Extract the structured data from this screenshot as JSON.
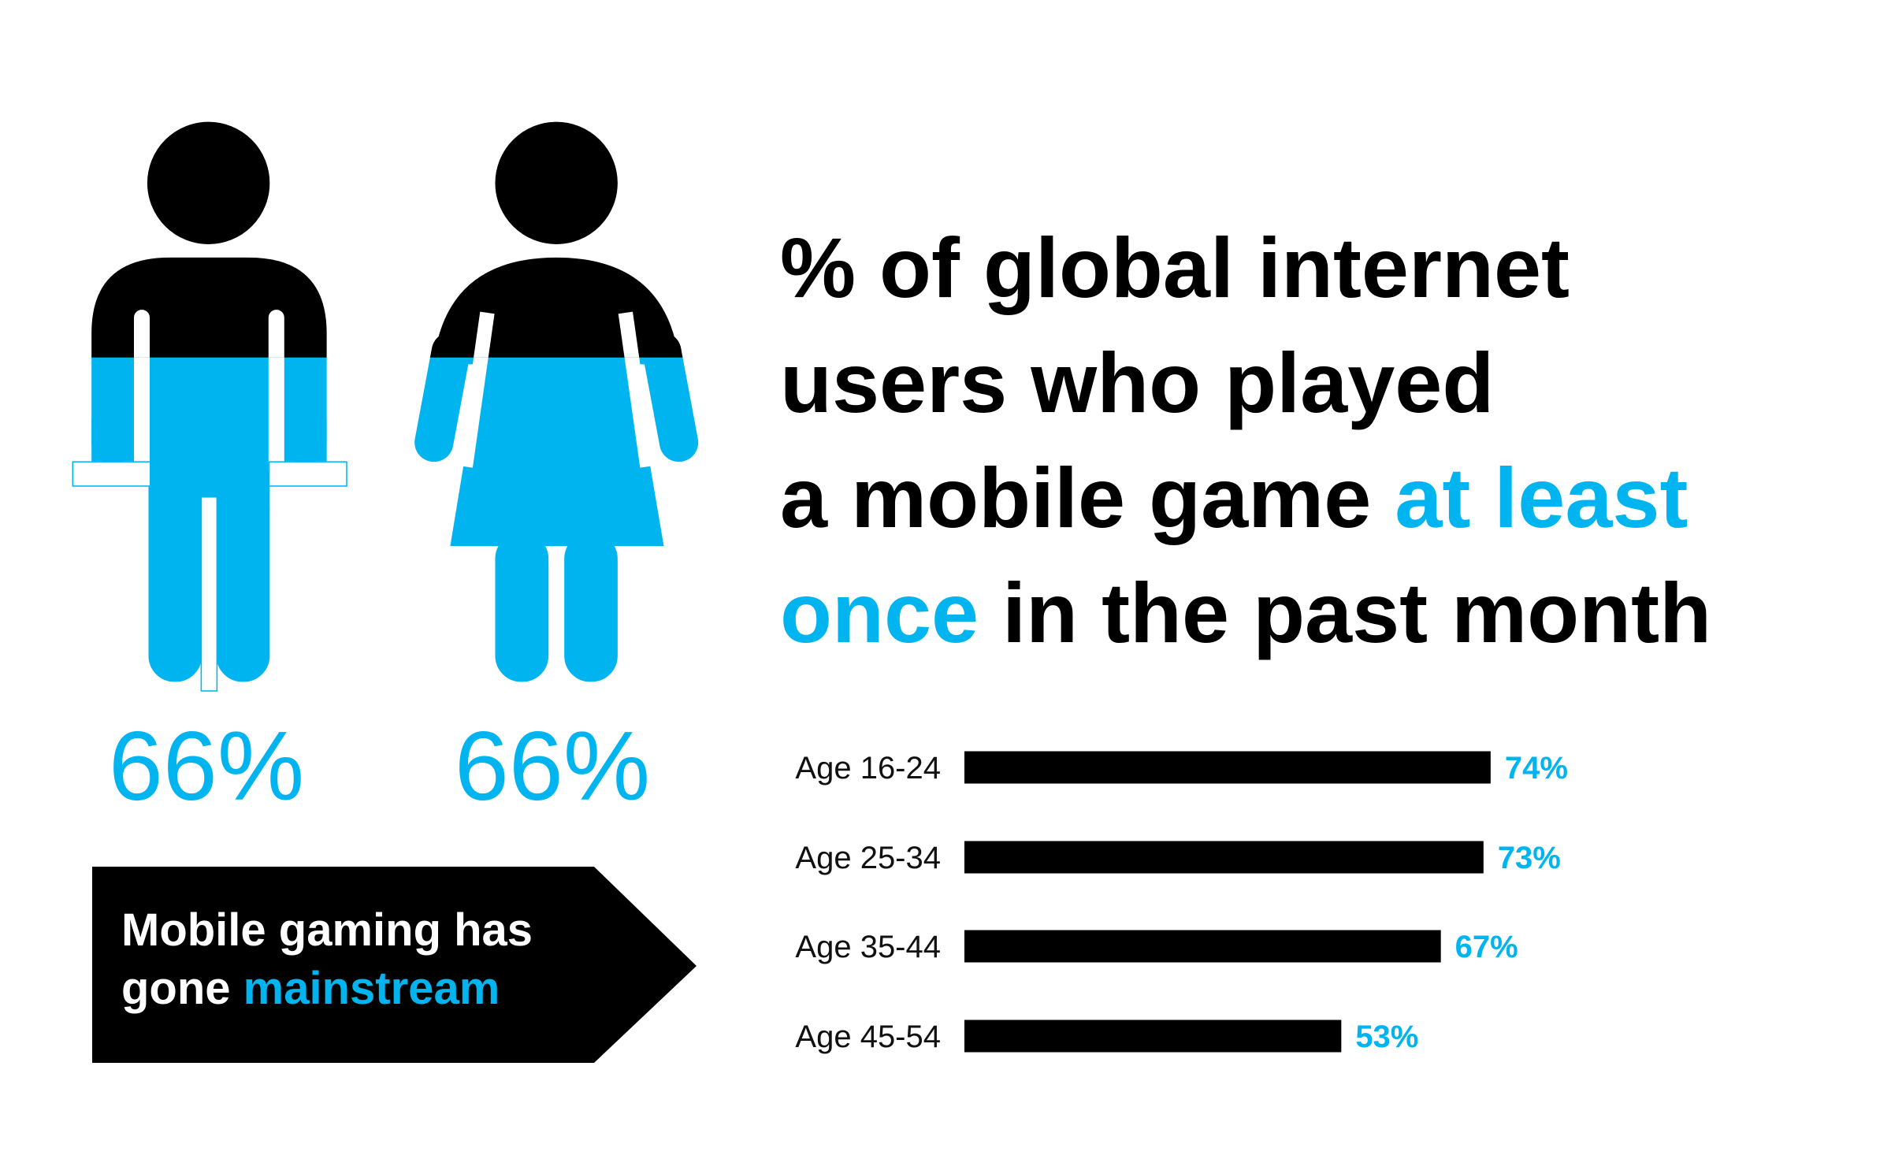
{
  "figure_labels": [
    "66%",
    "66%"
  ],
  "callout": {
    "color": "#000000",
    "lines": [
      [
        {
          "text": "Mobile gaming has"
        }
      ],
      [
        {
          "text": "gone "
        },
        {
          "text": "mainstream",
          "color": "#00b5ef"
        }
      ]
    ]
  },
  "chart_data": {
    "type": "bar",
    "orientation": "horizontal",
    "title_lines": [
      [
        {
          "text": "% of global internet"
        }
      ],
      [
        {
          "text": "users who played"
        }
      ],
      [
        {
          "text": "a mobile game "
        },
        {
          "text": "at least",
          "color": "#00b5ef"
        }
      ],
      [
        {
          "text": "once",
          "color": "#00b5ef"
        },
        {
          "text": " in the past month"
        }
      ]
    ],
    "categories": [
      "Age 16-24",
      "Age 25-34",
      "Age 35-44",
      "Age 45-54"
    ],
    "values": [
      74,
      73,
      67,
      53
    ],
    "value_labels": [
      "74%",
      "73%",
      "67%",
      "53%"
    ],
    "color": "#000000",
    "label_color": "#00b5ef",
    "xlim": [
      0,
      80
    ]
  }
}
